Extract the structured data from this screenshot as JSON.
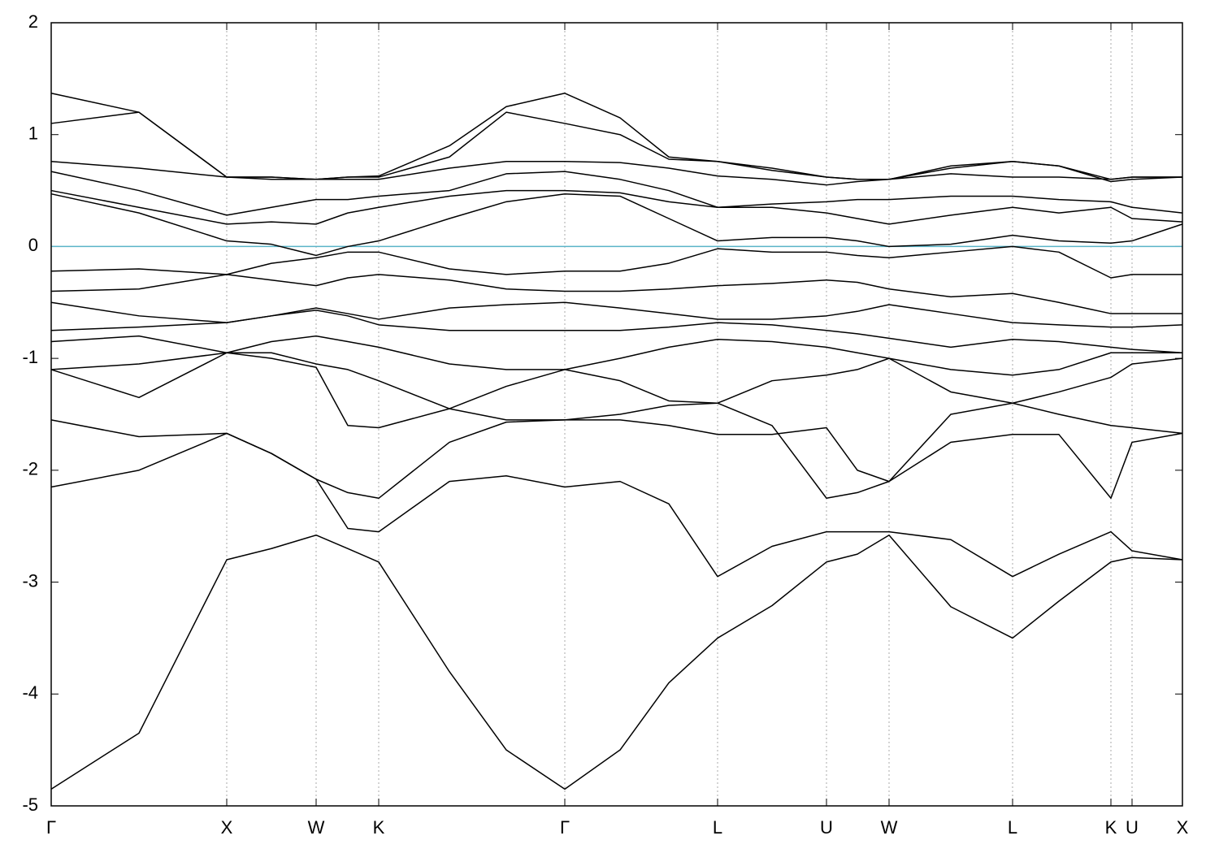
{
  "chart_data": {
    "type": "line",
    "color": "#000000",
    "x": [
      0,
      1.08,
      2.16,
      2.71,
      3.26,
      3.65,
      4.03,
      4.9,
      5.6,
      6.32,
      7.0,
      7.6,
      8.2,
      8.87,
      9.54,
      9.92,
      10.31,
      11.07,
      11.83,
      12.4,
      13.04,
      13.3,
      13.92
    ],
    "series": [
      {
        "values": [
          -4.85,
          -4.35,
          -2.8,
          -2.7,
          -2.58,
          -2.7,
          -2.82,
          -3.8,
          -4.5,
          -4.85,
          -4.5,
          -3.9,
          -3.5,
          -3.21,
          -2.82,
          -2.75,
          -2.58,
          -3.22,
          -3.5,
          -3.17,
          -2.82,
          -2.78,
          -2.8
        ]
      },
      {
        "values": [
          -2.15,
          -2.0,
          -1.67,
          -1.85,
          -2.08,
          -2.52,
          -2.55,
          -2.1,
          -2.05,
          -2.15,
          -2.1,
          -2.3,
          -2.95,
          -2.68,
          -2.55,
          -2.55,
          -2.55,
          -2.62,
          -2.95,
          -2.75,
          -2.55,
          -2.72,
          -2.8
        ]
      },
      {
        "values": [
          -1.55,
          -1.7,
          -1.67,
          -1.85,
          -2.08,
          -2.2,
          -2.25,
          -1.75,
          -1.57,
          -1.55,
          -1.55,
          -1.6,
          -1.68,
          -1.68,
          -1.62,
          -2.0,
          -2.1,
          -1.75,
          -1.68,
          -1.68,
          -2.25,
          -1.75,
          -1.67
        ]
      },
      {
        "values": [
          -1.1,
          -1.35,
          -0.95,
          -1.0,
          -1.08,
          -1.6,
          -1.62,
          -1.45,
          -1.25,
          -1.1,
          -1.2,
          -1.38,
          -1.4,
          -1.6,
          -2.25,
          -2.2,
          -2.1,
          -1.5,
          -1.4,
          -1.5,
          -1.6,
          -1.62,
          -1.67
        ]
      },
      {
        "values": [
          -1.1,
          -1.05,
          -0.95,
          -0.95,
          -1.05,
          -1.1,
          -1.2,
          -1.45,
          -1.55,
          -1.55,
          -1.5,
          -1.42,
          -1.4,
          -1.2,
          -1.15,
          -1.1,
          -1.0,
          -1.3,
          -1.4,
          -1.3,
          -1.17,
          -1.05,
          -1.0
        ]
      },
      {
        "values": [
          -0.85,
          -0.8,
          -0.95,
          -0.85,
          -0.8,
          -0.85,
          -0.9,
          -1.05,
          -1.1,
          -1.1,
          -1.0,
          -0.9,
          -0.83,
          -0.85,
          -0.9,
          -0.95,
          -1.0,
          -1.1,
          -1.15,
          -1.1,
          -0.95,
          -0.95,
          -0.95
        ]
      },
      {
        "values": [
          -0.75,
          -0.72,
          -0.68,
          -0.62,
          -0.57,
          -0.62,
          -0.7,
          -0.75,
          -0.75,
          -0.75,
          -0.75,
          -0.72,
          -0.68,
          -0.7,
          -0.75,
          -0.78,
          -0.82,
          -0.9,
          -0.83,
          -0.85,
          -0.9,
          -0.92,
          -0.95
        ]
      },
      {
        "values": [
          -0.5,
          -0.62,
          -0.68,
          -0.62,
          -0.55,
          -0.6,
          -0.65,
          -0.55,
          -0.52,
          -0.5,
          -0.55,
          -0.6,
          -0.65,
          -0.65,
          -0.62,
          -0.58,
          -0.52,
          -0.6,
          -0.68,
          -0.7,
          -0.72,
          -0.72,
          -0.7
        ]
      },
      {
        "values": [
          -0.4,
          -0.38,
          -0.25,
          -0.3,
          -0.35,
          -0.28,
          -0.25,
          -0.3,
          -0.38,
          -0.4,
          -0.4,
          -0.38,
          -0.35,
          -0.33,
          -0.3,
          -0.32,
          -0.38,
          -0.45,
          -0.42,
          -0.5,
          -0.6,
          -0.6,
          -0.6
        ]
      },
      {
        "values": [
          -0.22,
          -0.2,
          -0.25,
          -0.15,
          -0.1,
          -0.05,
          -0.05,
          -0.2,
          -0.25,
          -0.22,
          -0.22,
          -0.15,
          -0.02,
          -0.05,
          -0.05,
          -0.08,
          -0.1,
          -0.05,
          0.0,
          -0.05,
          -0.28,
          -0.25,
          -0.25
        ]
      },
      {
        "values": [
          0.47,
          0.3,
          0.05,
          0.02,
          -0.08,
          0.0,
          0.05,
          0.25,
          0.4,
          0.47,
          0.45,
          0.25,
          0.05,
          0.08,
          0.08,
          0.05,
          0.0,
          0.02,
          0.1,
          0.05,
          0.03,
          0.05,
          0.2
        ]
      },
      {
        "values": [
          0.5,
          0.35,
          0.2,
          0.22,
          0.2,
          0.3,
          0.35,
          0.45,
          0.5,
          0.5,
          0.48,
          0.4,
          0.35,
          0.35,
          0.3,
          0.25,
          0.2,
          0.28,
          0.35,
          0.3,
          0.35,
          0.25,
          0.22
        ]
      },
      {
        "values": [
          0.67,
          0.5,
          0.28,
          0.35,
          0.42,
          0.42,
          0.45,
          0.5,
          0.65,
          0.67,
          0.6,
          0.5,
          0.35,
          0.38,
          0.4,
          0.42,
          0.42,
          0.45,
          0.45,
          0.42,
          0.4,
          0.35,
          0.3
        ]
      },
      {
        "values": [
          0.76,
          0.7,
          0.62,
          0.6,
          0.6,
          0.6,
          0.6,
          0.7,
          0.76,
          0.76,
          0.75,
          0.7,
          0.63,
          0.6,
          0.55,
          0.58,
          0.6,
          0.65,
          0.62,
          0.62,
          0.6,
          0.62,
          0.62
        ]
      },
      {
        "values": [
          1.1,
          1.2,
          0.62,
          0.62,
          0.6,
          0.62,
          0.62,
          0.8,
          1.2,
          1.1,
          1.0,
          0.78,
          0.76,
          0.68,
          0.62,
          0.6,
          0.6,
          0.7,
          0.76,
          0.72,
          0.58,
          0.6,
          0.62
        ]
      },
      {
        "values": [
          1.37,
          1.2,
          0.62,
          0.62,
          0.6,
          0.62,
          0.63,
          0.9,
          1.25,
          1.37,
          1.15,
          0.8,
          0.76,
          0.7,
          0.62,
          0.6,
          0.6,
          0.72,
          0.76,
          0.72,
          0.6,
          0.62,
          0.62
        ]
      }
    ],
    "xlim": [
      0,
      13.92
    ],
    "xticks": [
      {
        "value": 0,
        "label": "Γ"
      },
      {
        "value": 2.16,
        "label": "X"
      },
      {
        "value": 3.26,
        "label": "W"
      },
      {
        "value": 4.03,
        "label": "K"
      },
      {
        "value": 6.32,
        "label": "Γ"
      },
      {
        "value": 8.2,
        "label": "L"
      },
      {
        "value": 9.54,
        "label": "U"
      },
      {
        "value": 10.31,
        "label": "W"
      },
      {
        "value": 11.83,
        "label": "L"
      },
      {
        "value": 13.04,
        "label": "K"
      },
      {
        "value": 13.3,
        "label": "U"
      },
      {
        "value": 13.92,
        "label": "X"
      }
    ],
    "ylim": [
      -5,
      2
    ],
    "yticks": [
      -5,
      -4,
      -3,
      -2,
      -1,
      0,
      1,
      2
    ],
    "xgrid": true,
    "reference_line": {
      "value": 0,
      "color": "#5ab4c8"
    }
  }
}
